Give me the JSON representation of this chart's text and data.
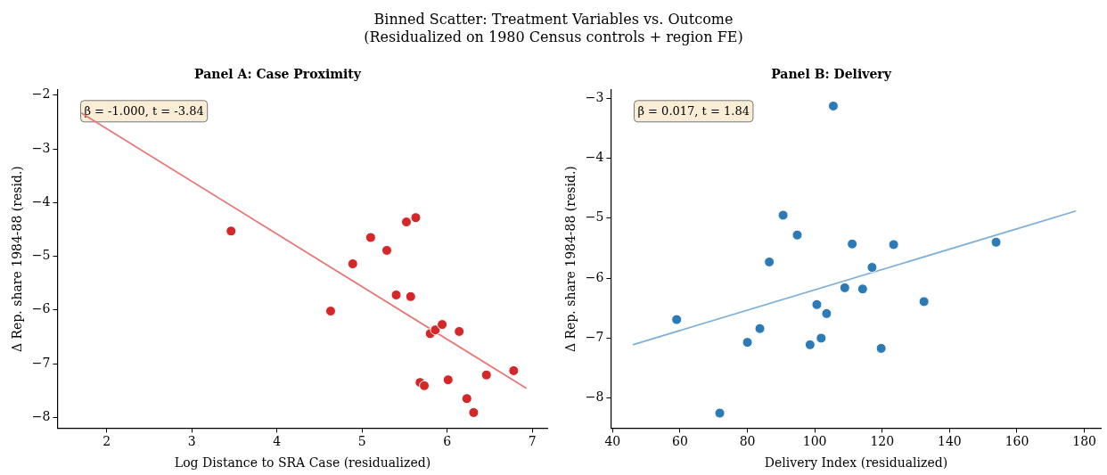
{
  "chart_data": [
    {
      "type": "other",
      "title": "Binned Scatter: Treatment Variables vs. Outcome",
      "subtitle": "(Residualized on 1980 Census controls + region FE)"
    },
    {
      "type": "scatter",
      "title": "Panel A: Case Proximity",
      "xlabel": "Log Distance to SRA Case (residualized)",
      "ylabel": "Δ Rep. share 1984-88 (resid.)",
      "annotations": [
        "β = -1.000, t = -3.84"
      ],
      "xlim": [
        1.42,
        7.18
      ],
      "ylim": [
        -8.2,
        -1.9
      ],
      "xticks": [
        2,
        3,
        4,
        5,
        6,
        7
      ],
      "yticks": [
        {
          "value": -8,
          "label": "−8"
        },
        {
          "value": -7,
          "label": "−7"
        },
        {
          "value": -6,
          "label": "−6"
        },
        {
          "value": -5,
          "label": "−5"
        },
        {
          "value": -4,
          "label": "−4"
        },
        {
          "value": -3,
          "label": "−3"
        },
        {
          "value": -2,
          "label": "−2"
        }
      ],
      "legend": false,
      "series": [
        {
          "type": "scatter",
          "marker": "circle",
          "color": "#d62728",
          "x": [
            3.46,
            4.63,
            4.89,
            5.1,
            5.29,
            5.4,
            5.52,
            5.57,
            5.63,
            5.68,
            5.73,
            5.8,
            5.86,
            5.94,
            6.01,
            6.14,
            6.23,
            6.31,
            6.46,
            6.78
          ],
          "values": [
            -4.53,
            -6.02,
            -5.14,
            -4.65,
            -4.89,
            -5.72,
            -4.36,
            -5.75,
            -4.28,
            -7.35,
            -7.41,
            -6.44,
            -6.37,
            -6.27,
            -7.3,
            -6.4,
            -7.65,
            -7.91,
            -7.21,
            -7.13
          ]
        },
        {
          "type": "line",
          "marker": "none",
          "color": "#e87878",
          "x": [
            1.7,
            6.93
          ],
          "values": [
            -2.33,
            -7.46
          ]
        }
      ]
    },
    {
      "type": "scatter",
      "title": "Panel B: Delivery",
      "xlabel": "Delivery Index (residualized)",
      "ylabel": "Δ Rep. share 1984-88 (resid.)",
      "annotations": [
        "β = 0.017, t = 1.84"
      ],
      "xlim": [
        39.5,
        185
      ],
      "ylim": [
        -8.5,
        -2.86
      ],
      "xticks": [
        40,
        60,
        80,
        100,
        120,
        140,
        160,
        180
      ],
      "yticks": [
        {
          "value": -8,
          "label": "−8"
        },
        {
          "value": -7,
          "label": "−7"
        },
        {
          "value": -6,
          "label": "−6"
        },
        {
          "value": -5,
          "label": "−5"
        },
        {
          "value": -4,
          "label": "−4"
        },
        {
          "value": -3,
          "label": "−3"
        }
      ],
      "legend": false,
      "series": [
        {
          "type": "scatter",
          "marker": "circle",
          "color": "#2c7bb6",
          "x": [
            59,
            71.8,
            80,
            83.7,
            86.5,
            90.6,
            94.8,
            98.6,
            100.6,
            101.9,
            103.5,
            105.5,
            108.9,
            111.1,
            114.2,
            117,
            119.7,
            123.4,
            132.4,
            153.8
          ],
          "values": [
            -6.69,
            -8.25,
            -7.07,
            -6.84,
            -5.73,
            -4.95,
            -5.28,
            -7.11,
            -6.44,
            -7.0,
            -6.59,
            -3.13,
            -6.16,
            -5.43,
            -6.18,
            -5.82,
            -7.17,
            -5.44,
            -6.39,
            -5.4
          ]
        },
        {
          "type": "line",
          "marker": "none",
          "color": "#7fb0d8",
          "x": [
            46,
            177.5
          ],
          "values": [
            -7.11,
            -4.88
          ]
        }
      ]
    }
  ]
}
